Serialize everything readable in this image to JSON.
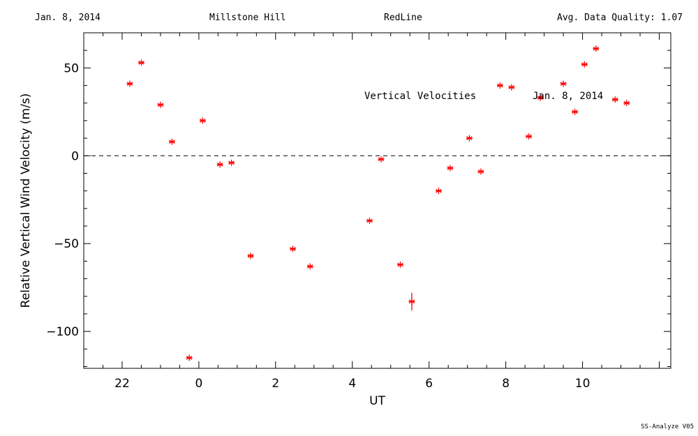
{
  "header": {
    "date": "Jan. 8, 2014",
    "site": "Millstone Hill",
    "channel": "RedLine",
    "quality": "Avg. Data Quality: 1.07"
  },
  "footer": {
    "software": "SS-Analyze V05"
  },
  "chart_data": {
    "type": "scatter",
    "title": "Vertical Velocities",
    "annotation": "Jan. 8, 2014",
    "xlabel": "UT",
    "ylabel": "Relative Vertical Wind Velocity (m/s)",
    "x_axis_unwrapped_hours": [
      -3,
      12.3
    ],
    "xlim_ut": [
      21,
      12.3
    ],
    "ylim": [
      -121,
      70
    ],
    "x_ticks": [
      {
        "ut": 22,
        "label": "22"
      },
      {
        "ut": 0,
        "label": "0"
      },
      {
        "ut": 2,
        "label": "2"
      },
      {
        "ut": 4,
        "label": "4"
      },
      {
        "ut": 6,
        "label": "6"
      },
      {
        "ut": 8,
        "label": "8"
      },
      {
        "ut": 10,
        "label": "10"
      }
    ],
    "y_ticks": [
      {
        "value": 50,
        "label": "50"
      },
      {
        "value": 0,
        "label": "0"
      },
      {
        "value": -50,
        "label": "−50"
      },
      {
        "value": -100,
        "label": "−100"
      }
    ],
    "zero_line": true,
    "marker_color": "#ff0000",
    "points": [
      {
        "ut": 22.2,
        "y": 41
      },
      {
        "ut": 22.5,
        "y": 53
      },
      {
        "ut": 23.0,
        "y": 29
      },
      {
        "ut": 23.3,
        "y": 8
      },
      {
        "ut": 23.75,
        "y": -115
      },
      {
        "ut": 0.1,
        "y": 20
      },
      {
        "ut": 0.55,
        "y": -5
      },
      {
        "ut": 0.85,
        "y": -4
      },
      {
        "ut": 1.35,
        "y": -57
      },
      {
        "ut": 2.45,
        "y": -53
      },
      {
        "ut": 2.9,
        "y": -63
      },
      {
        "ut": 4.45,
        "y": -37
      },
      {
        "ut": 4.75,
        "y": -2
      },
      {
        "ut": 5.25,
        "y": -62
      },
      {
        "ut": 5.55,
        "y": -83,
        "err": 5
      },
      {
        "ut": 6.25,
        "y": -20
      },
      {
        "ut": 6.55,
        "y": -7
      },
      {
        "ut": 7.05,
        "y": 10
      },
      {
        "ut": 7.35,
        "y": -9
      },
      {
        "ut": 7.85,
        "y": 40
      },
      {
        "ut": 8.15,
        "y": 39
      },
      {
        "ut": 8.6,
        "y": 11
      },
      {
        "ut": 8.9,
        "y": 33
      },
      {
        "ut": 9.5,
        "y": 41
      },
      {
        "ut": 9.8,
        "y": 25
      },
      {
        "ut": 10.05,
        "y": 52
      },
      {
        "ut": 10.35,
        "y": 61
      },
      {
        "ut": 10.85,
        "y": 32
      },
      {
        "ut": 11.15,
        "y": 30
      }
    ]
  }
}
